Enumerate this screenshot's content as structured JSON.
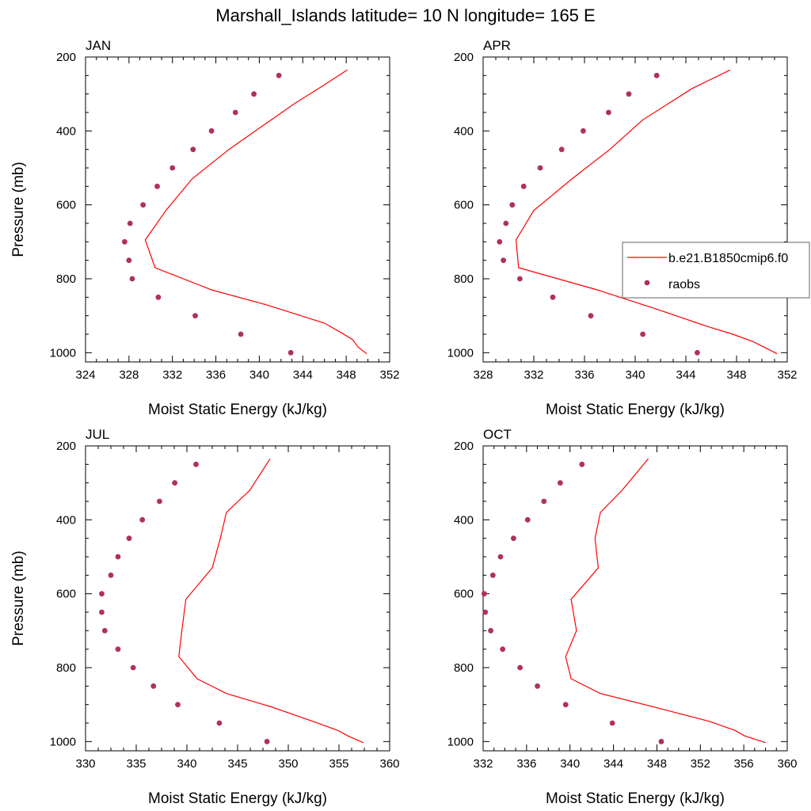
{
  "title": "Marshall_Islands  latitude= 10 N longitude= 165 E",
  "colors": {
    "model": "#ff0000",
    "obs": "#b03060"
  },
  "legend": {
    "model_label": "b.e21.B1850cmip6.f0",
    "obs_label": "raobs",
    "panel_index": 1
  },
  "chart_data": [
    {
      "type": "line",
      "label": "JAN",
      "xlabel": "Moist Static Energy (kJ/kg)",
      "ylabel": "Pressure (mb)",
      "xlim": [
        324,
        352
      ],
      "xticks": [
        324,
        328,
        332,
        336,
        340,
        344,
        348,
        352
      ],
      "ylim": [
        200,
        1025
      ],
      "yticks": [
        200,
        400,
        600,
        800,
        1000
      ],
      "model": {
        "name": "b.e21.B1850cmip6.f0",
        "p": [
          235,
          275,
          325,
          380,
          450,
          530,
          615,
          695,
          770,
          830,
          870,
          920,
          945,
          965,
          985,
          1003
        ],
        "x": [
          348.1,
          346.0,
          343.3,
          340.6,
          337.2,
          333.8,
          331.4,
          329.5,
          330.4,
          335.6,
          340.6,
          346.0,
          347.5,
          348.6,
          349.1,
          349.9
        ]
      },
      "obs": {
        "name": "raobs",
        "p": [
          250,
          300,
          350,
          400,
          450,
          500,
          550,
          600,
          650,
          700,
          750,
          800,
          850,
          900,
          950,
          1000
        ],
        "x": [
          341.8,
          339.5,
          337.8,
          335.6,
          333.9,
          332.0,
          330.6,
          329.3,
          328.1,
          327.6,
          328.0,
          328.3,
          330.7,
          334.1,
          338.3,
          342.9
        ]
      }
    },
    {
      "type": "line",
      "label": "APR",
      "xlabel": "Moist Static Energy (kJ/kg)",
      "ylabel": "",
      "xlim": [
        328,
        352
      ],
      "xticks": [
        328,
        332,
        336,
        340,
        344,
        348,
        352
      ],
      "ylim": [
        200,
        1025
      ],
      "yticks": [
        200,
        400,
        600,
        800,
        1000
      ],
      "model": {
        "name": "b.e21.B1850cmip6.f0",
        "p": [
          235,
          285,
          370,
          450,
          530,
          615,
          695,
          770,
          830,
          880,
          930,
          950,
          970,
          1003
        ],
        "x": [
          347.5,
          344.5,
          340.6,
          338.0,
          335.0,
          332.0,
          330.6,
          330.8,
          337.0,
          341.5,
          345.8,
          347.7,
          349.3,
          351.2
        ]
      },
      "obs": {
        "name": "raobs",
        "p": [
          250,
          300,
          350,
          400,
          450,
          500,
          550,
          600,
          650,
          700,
          750,
          800,
          850,
          900,
          950,
          1000
        ],
        "x": [
          341.7,
          339.5,
          337.9,
          335.9,
          334.2,
          332.5,
          331.2,
          330.3,
          329.8,
          329.3,
          329.6,
          330.9,
          333.5,
          336.5,
          340.6,
          344.9
        ]
      }
    },
    {
      "type": "line",
      "label": "JUL",
      "xlabel": "Moist Static Energy (kJ/kg)",
      "ylabel": "Pressure (mb)",
      "xlim": [
        330,
        360
      ],
      "xticks": [
        330,
        335,
        340,
        345,
        350,
        355,
        360
      ],
      "ylim": [
        200,
        1025
      ],
      "yticks": [
        200,
        400,
        600,
        800,
        1000
      ],
      "model": {
        "name": "b.e21.B1850cmip6.f0",
        "p": [
          235,
          320,
          380,
          450,
          530,
          615,
          700,
          770,
          830,
          870,
          905,
          945,
          970,
          985,
          1003
        ],
        "x": [
          348.2,
          346.2,
          343.9,
          343.3,
          342.5,
          339.9,
          339.5,
          339.2,
          341.0,
          343.9,
          348.2,
          352.4,
          354.9,
          355.9,
          357.4
        ]
      },
      "obs": {
        "name": "raobs",
        "p": [
          250,
          300,
          350,
          400,
          450,
          500,
          550,
          600,
          650,
          700,
          750,
          800,
          850,
          900,
          950,
          1000
        ],
        "x": [
          340.9,
          338.8,
          337.3,
          335.6,
          334.3,
          333.2,
          332.5,
          331.6,
          331.6,
          331.9,
          333.2,
          334.7,
          336.7,
          339.1,
          343.2,
          347.9
        ]
      }
    },
    {
      "type": "line",
      "label": "OCT",
      "xlabel": "Moist Static Energy (kJ/kg)",
      "ylabel": "",
      "xlim": [
        332,
        360
      ],
      "xticks": [
        332,
        336,
        340,
        344,
        348,
        352,
        356,
        360
      ],
      "ylim": [
        200,
        1025
      ],
      "yticks": [
        200,
        400,
        600,
        800,
        1000
      ],
      "model": {
        "name": "b.e21.B1850cmip6.f0",
        "p": [
          235,
          320,
          380,
          450,
          530,
          615,
          700,
          770,
          830,
          870,
          910,
          945,
          970,
          985,
          1003
        ],
        "x": [
          347.2,
          344.8,
          342.8,
          342.3,
          342.6,
          340.1,
          340.6,
          339.6,
          340.1,
          342.8,
          348.2,
          352.8,
          355.2,
          356.1,
          358.0
        ]
      },
      "obs": {
        "name": "raobs",
        "p": [
          250,
          300,
          350,
          400,
          450,
          500,
          550,
          600,
          650,
          700,
          750,
          800,
          850,
          900,
          950,
          1000
        ],
        "x": [
          341.1,
          339.1,
          337.6,
          336.1,
          334.8,
          333.6,
          332.9,
          332.1,
          332.2,
          332.7,
          333.8,
          335.4,
          337.0,
          339.6,
          343.9,
          348.4
        ]
      }
    }
  ]
}
